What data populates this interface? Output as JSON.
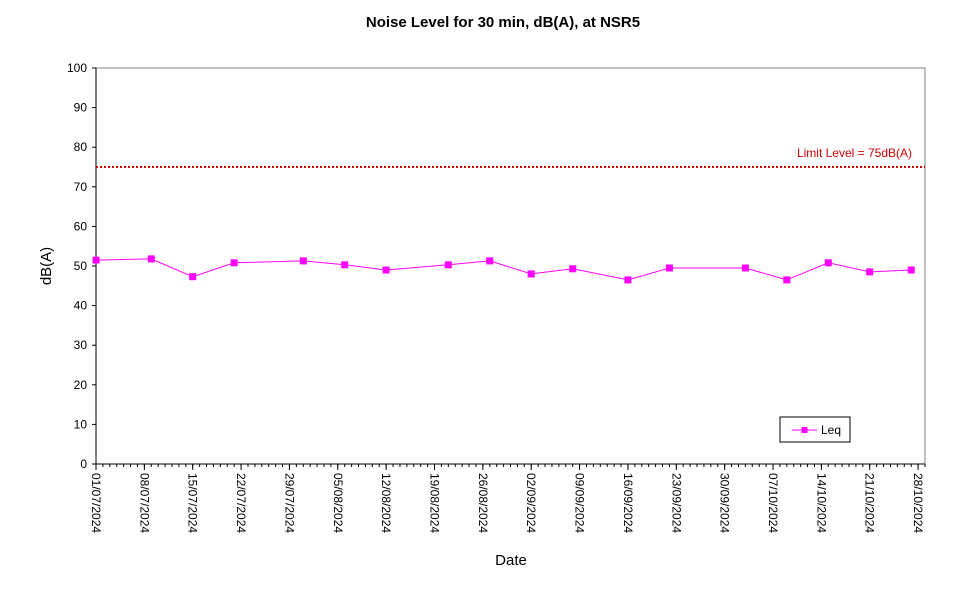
{
  "chart_data": {
    "type": "line",
    "title": "Noise Level for 30 min, dB(A), at NSR5",
    "xlabel": "Date",
    "ylabel": "dB(A)",
    "ylim": [
      0,
      100
    ],
    "y_ticks": [
      0,
      10,
      20,
      30,
      40,
      50,
      60,
      70,
      80,
      90,
      100
    ],
    "xlim": [
      "2024-07-01",
      "2024-10-29"
    ],
    "x_ticks": [
      "01/07/2024",
      "08/07/2024",
      "15/07/2024",
      "22/07/2024",
      "29/07/2024",
      "05/08/2024",
      "12/08/2024",
      "19/08/2024",
      "26/08/2024",
      "02/09/2024",
      "09/09/2024",
      "16/09/2024",
      "23/09/2024",
      "30/09/2024",
      "07/10/2024",
      "14/10/2024",
      "21/10/2024",
      "28/10/2024"
    ],
    "grid": false,
    "legend_position": "bottom-right",
    "series": [
      {
        "name": "Leq",
        "color": "#ff00ff",
        "marker": "square",
        "x": [
          "2024-07-01",
          "2024-07-09",
          "2024-07-15",
          "2024-07-21",
          "2024-07-31",
          "2024-08-06",
          "2024-08-12",
          "2024-08-21",
          "2024-08-27",
          "2024-09-02",
          "2024-09-08",
          "2024-09-16",
          "2024-09-22",
          "2024-10-03",
          "2024-10-09",
          "2024-10-15",
          "2024-10-21",
          "2024-10-27"
        ],
        "y": [
          51.5,
          51.8,
          47.3,
          50.8,
          51.3,
          50.3,
          49.0,
          50.3,
          51.3,
          48.0,
          49.3,
          46.5,
          49.5,
          49.5,
          46.5,
          50.8,
          48.5,
          49.0
        ]
      }
    ],
    "reference_lines": [
      {
        "y": 75,
        "label": "Limit Level  = 75dB(A)",
        "color": "#cc0000",
        "style": "dotted"
      }
    ]
  }
}
